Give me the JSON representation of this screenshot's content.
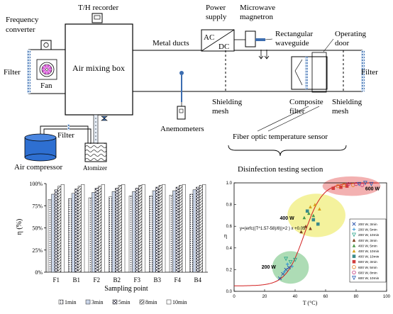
{
  "schematic": {
    "labels": {
      "frequency_converter": [
        "Frequency",
        "converter"
      ],
      "th_recorder": "T/H recorder",
      "power_supply": [
        "Power",
        "supply"
      ],
      "microwave_magnetron": [
        "Microwave",
        "magnetron"
      ],
      "rectangular_waveguide": [
        "Rectangular",
        "waveguide"
      ],
      "operating_door": [
        "Operating",
        "door"
      ],
      "ac": "AC",
      "dc": "DC",
      "metal_ducts": "Metal ducts",
      "air_mixing_box": "Air mixing box",
      "filter_left": "Filter",
      "filter_right": "Filter",
      "filter_mid": "Filter",
      "fan": "Fan",
      "shielding_mesh_1": [
        "Shielding",
        "mesh"
      ],
      "composite_filter": [
        "Composite",
        "filter"
      ],
      "shielding_mesh_2": [
        "Shielding",
        "mesh"
      ],
      "anemometers": "Anemometers",
      "fiber_optic_sensor": "Fiber optic temperature sensor",
      "air_compressor": "Air compressor",
      "atomizer": "Atomizer",
      "disinfection_section": "Disinfection testing section"
    }
  },
  "chart_data": [
    {
      "type": "bar",
      "ylabel": "η (%)",
      "xlabel": "Sampling point",
      "yticks": [
        "0%",
        "25%",
        "50%",
        "75%",
        "100%"
      ],
      "ylim": [
        0,
        100
      ],
      "categories": [
        "F1",
        "B1",
        "F2",
        "B2",
        "F3",
        "B3",
        "F4",
        "B4"
      ],
      "series": [
        {
          "name": "1min",
          "pattern": "dots",
          "values": [
            82,
            83,
            84,
            85,
            86,
            86,
            87,
            88
          ]
        },
        {
          "name": "3min",
          "pattern": "light",
          "values": [
            88,
            89,
            90,
            91,
            91,
            92,
            92,
            93
          ]
        },
        {
          "name": "5min",
          "pattern": "checker",
          "values": [
            93,
            94,
            95,
            95,
            95,
            96,
            96,
            96
          ]
        },
        {
          "name": "8min",
          "pattern": "hatch",
          "values": [
            97,
            97,
            97,
            98,
            98,
            98,
            98,
            98
          ]
        },
        {
          "name": "10min",
          "pattern": "white",
          "values": [
            99,
            99,
            99,
            99,
            99,
            99,
            99,
            99
          ]
        }
      ],
      "legend_position": "bottom"
    },
    {
      "type": "scatter",
      "ylabel": "η",
      "xlabel": "T (°C)",
      "xticks": [
        "0",
        "20",
        "40",
        "60",
        "80",
        "100"
      ],
      "yticks": [
        "0.0",
        "0.2",
        "0.4",
        "0.6",
        "0.8",
        "1.0"
      ],
      "xlim": [
        0,
        100
      ],
      "ylim": [
        0,
        1.0
      ],
      "fit_equation": "y=(erfc((T^1.57-58)/8))×2 ) x +0.05",
      "clusters": [
        {
          "label": "200 W",
          "color": "#9fd6a8"
        },
        {
          "label": "400 W",
          "color": "#f2f08c"
        },
        {
          "label": "600 W",
          "color": "#f1a3a3"
        }
      ],
      "series": [
        {
          "name": "200 W, 3min",
          "color": "#1f4aa8",
          "marker": "x",
          "points": [
            [
              30,
              0.12
            ],
            [
              32,
              0.16
            ],
            [
              34,
              0.2
            ],
            [
              36,
              0.22
            ]
          ]
        },
        {
          "name": "200 W, 5min",
          "color": "#2a8fd4",
          "marker": "+",
          "points": [
            [
              33,
              0.18
            ],
            [
              35,
              0.25
            ],
            [
              38,
              0.23
            ]
          ]
        },
        {
          "name": "200 W, 10min",
          "color": "#2aa58a",
          "marker": "triangle-down",
          "points": [
            [
              34,
              0.3
            ],
            [
              37,
              0.27
            ],
            [
              40,
              0.29
            ]
          ]
        },
        {
          "name": "400 W, 3min",
          "color": "#7f3f1f",
          "marker": "triangle",
          "points": [
            [
              44,
              0.55
            ],
            [
              47,
              0.6
            ],
            [
              50,
              0.58
            ]
          ]
        },
        {
          "name": "400 W, 5min",
          "color": "#4a9a4a",
          "marker": "triangle",
          "points": [
            [
              46,
              0.68
            ],
            [
              49,
              0.72
            ],
            [
              52,
              0.7
            ]
          ]
        },
        {
          "name": "400 W, 10min",
          "color": "#d6a11a",
          "marker": "triangle",
          "points": [
            [
              50,
              0.78
            ],
            [
              53,
              0.8
            ],
            [
              56,
              0.76
            ]
          ]
        },
        {
          "name": "400 W, 10min",
          "color": "#3a8a8a",
          "marker": "square",
          "points": [
            [
              48,
              0.74
            ],
            [
              52,
              0.66
            ],
            [
              55,
              0.62
            ]
          ]
        },
        {
          "name": "600 W, 3min",
          "color": "#d23b3b",
          "marker": "square",
          "points": [
            [
              65,
              0.95
            ],
            [
              70,
              0.96
            ],
            [
              74,
              0.97
            ]
          ]
        },
        {
          "name": "600 W, 5min",
          "color": "#e07a1a",
          "marker": "circle",
          "points": [
            [
              68,
              0.97
            ],
            [
              72,
              0.98
            ],
            [
              78,
              0.98
            ]
          ]
        },
        {
          "name": "600 W, 8min",
          "color": "#c0347a",
          "marker": "circle",
          "points": [
            [
              75,
              0.99
            ],
            [
              80,
              0.99
            ],
            [
              84,
              0.98
            ]
          ]
        },
        {
          "name": "600 W, 10min",
          "color": "#2b5fb5",
          "marker": "triangle-down",
          "points": [
            [
              82,
              0.99
            ],
            [
              86,
              1.0
            ],
            [
              90,
              0.99
            ]
          ]
        }
      ],
      "legend_position": "right"
    }
  ]
}
